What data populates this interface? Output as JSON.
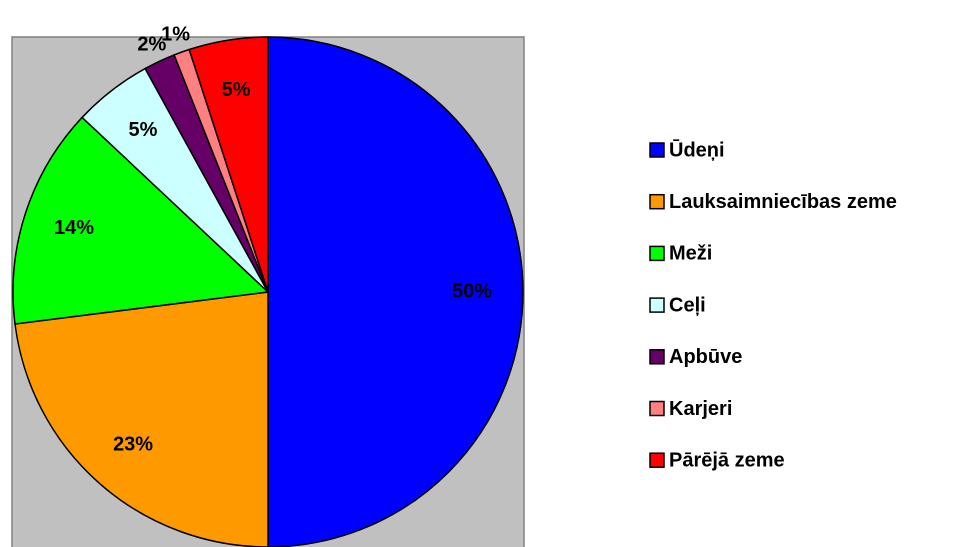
{
  "chart_data": {
    "type": "pie",
    "categories": [
      "Ūdeņi",
      "Lauksaimniecības zeme",
      "Meži",
      "Ceļi",
      "Apbūve",
      "Karjeri",
      "Pārējā zeme"
    ],
    "values": [
      50,
      23,
      14,
      5,
      2,
      1,
      5
    ],
    "value_labels": [
      "50%",
      "23%",
      "14%",
      "5%",
      "2%",
      "1%",
      "5%"
    ],
    "colors": [
      "#0000ff",
      "#ff9900",
      "#00ff00",
      "#ccffff",
      "#660066",
      "#ff8080",
      "#ff0000"
    ],
    "legend": "right"
  }
}
